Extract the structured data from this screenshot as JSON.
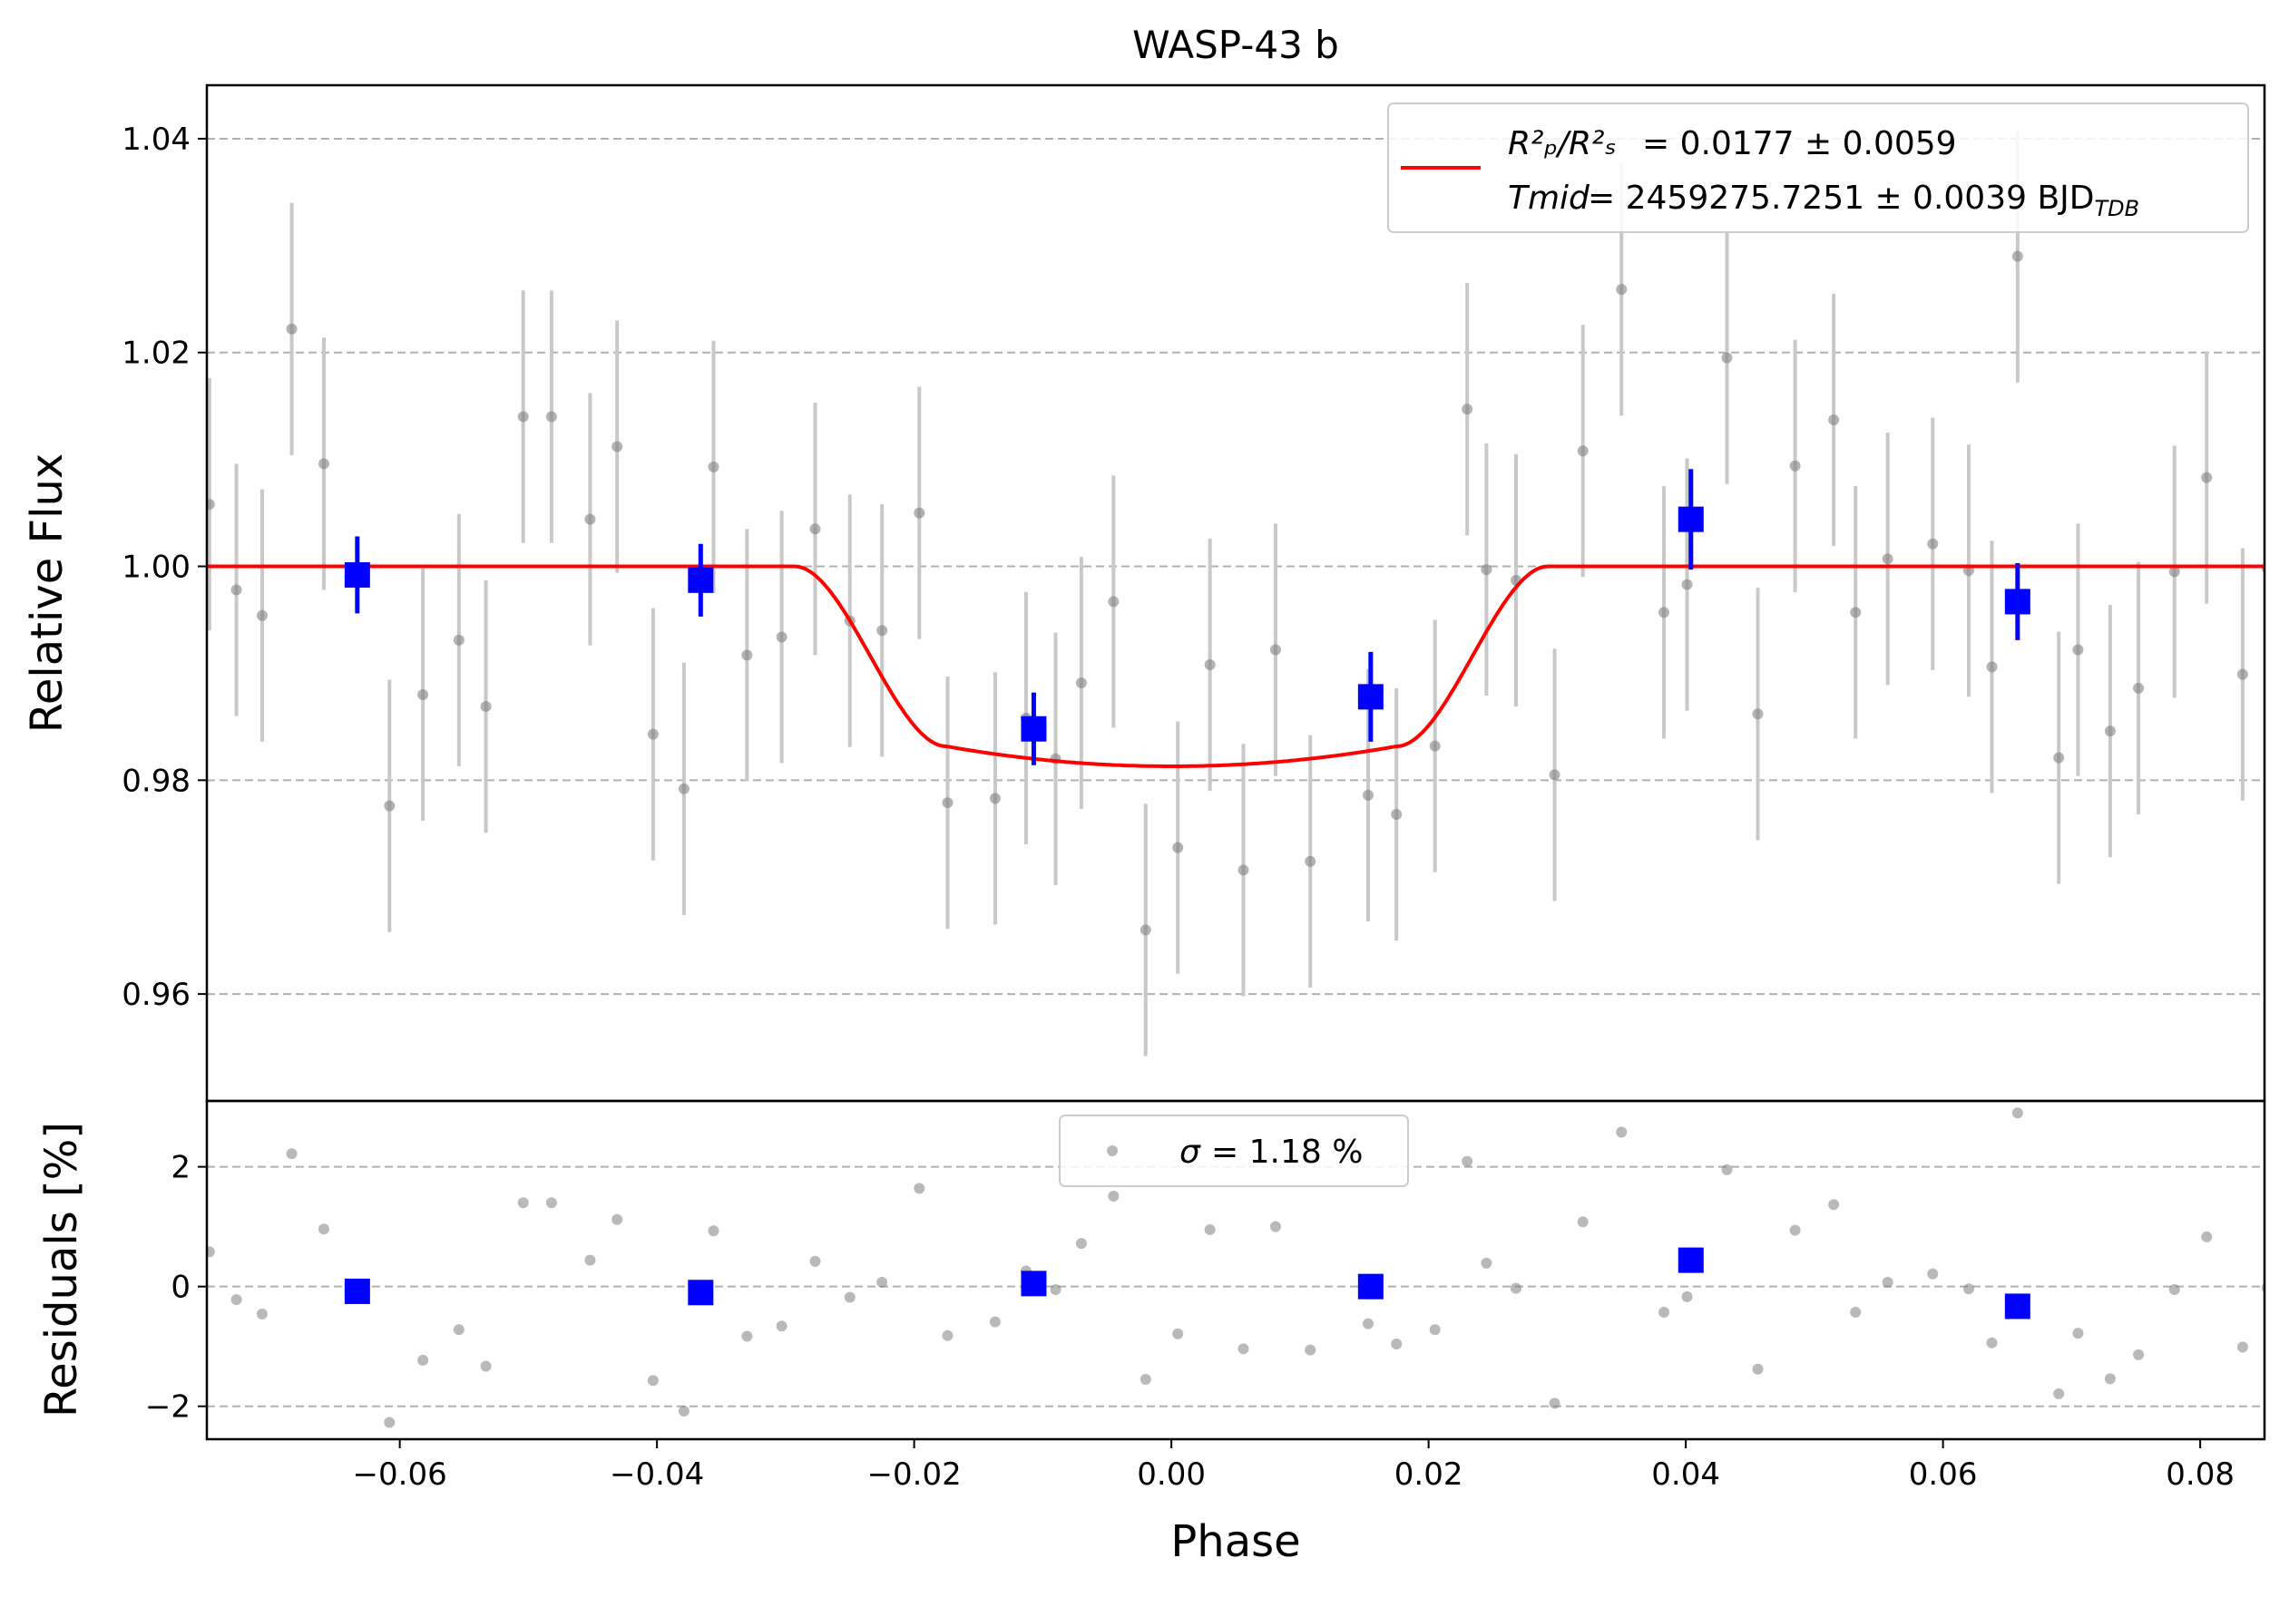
{
  "chart_data": [
    {
      "type": "scatter",
      "title": "WASP-43 b",
      "ylabel": "Relative Flux",
      "xlim": [
        -0.075,
        0.085
      ],
      "ylim": [
        0.95,
        1.045
      ],
      "yticks": [
        "0.96",
        "0.98",
        "1.00",
        "1.02",
        "1.04"
      ],
      "grid": "horizontal dashed",
      "legend_position": "top-right",
      "legend": {
        "line1_lhs": "R²ₚ/R²ₛ",
        "line1_rhs": "= 0.0177 ± 0.0059",
        "line2_lhs": "Tmid",
        "line2_rhs": "= 2459275.7251 ± 0.0039 BJD",
        "line2_sub": "TDB"
      },
      "colors": {
        "data": "#808080",
        "errorbar": "#c8c8c8",
        "binned": "#0000ff",
        "model": "#ff0000"
      },
      "series": [
        {
          "kind": "data",
          "x": [
            -0.0748,
            -0.0727,
            -0.0707,
            -0.0684,
            -0.0659,
            -0.0608,
            -0.0582,
            -0.0554,
            -0.0533,
            -0.0504,
            -0.0482,
            -0.0452,
            -0.0431,
            -0.0403,
            -0.0379,
            -0.0356,
            -0.033,
            -0.0303,
            -0.0277,
            -0.025,
            -0.0225,
            -0.0196,
            -0.0174,
            -0.0137,
            -0.0113,
            -0.009,
            -0.007,
            -0.0045,
            -0.002,
            0.0005,
            0.003,
            0.0056,
            0.0081,
            0.0108,
            0.0153,
            0.0175,
            0.0205,
            0.023,
            0.0245,
            0.0268,
            0.0298,
            0.032,
            0.035,
            0.0383,
            0.0401,
            0.0432,
            0.0456,
            0.0485,
            0.0515,
            0.0532,
            0.0557,
            0.0592,
            0.062,
            0.0638,
            0.0658,
            0.069,
            0.0705,
            0.073,
            0.0752,
            0.078,
            0.0805,
            0.0833,
            0.0852
          ],
          "y": [
            1.0058,
            0.9978,
            0.9954,
            1.0222,
            1.0096,
            0.9776,
            0.988,
            0.9931,
            0.9869,
            1.014,
            1.014,
            1.0044,
            1.0112,
            0.9843,
            0.9792,
            1.0093,
            0.9917,
            0.9934,
            1.0035,
            0.9949,
            0.994,
            1.005,
            0.9779,
            0.9783,
            0.9858,
            0.982,
            0.9891,
            0.9967,
            0.966,
            0.9737,
            0.9908,
            0.9716,
            0.9922,
            0.9724,
            0.9786,
            0.9768,
            0.9832,
            1.0147,
            0.9997,
            0.9987,
            0.9805,
            1.0108,
            1.0259,
            0.9957,
            0.9983,
            1.0195,
            0.9862,
            1.0094,
            1.0137,
            0.9957,
            1.0007,
            1.0021,
            0.9996,
            0.9906,
            1.029,
            0.9821,
            0.9922,
            0.9846,
            0.9886,
            0.9995,
            1.0083,
            0.9899,
            0.9998
          ],
          "yerr": 0.0118
        },
        {
          "kind": "binned",
          "x": [
            -0.0633,
            -0.0366,
            -0.0107,
            0.0155,
            0.0404,
            0.0658
          ],
          "y": [
            0.9992,
            0.9987,
            0.9848,
            0.9878,
            1.0044,
            0.9967
          ],
          "yerr": [
            0.0036,
            0.0034,
            0.0034,
            0.0042,
            0.0047,
            0.0036
          ]
        },
        {
          "kind": "model",
          "t0": 0.0,
          "half_duration": 0.0293,
          "ingress": 0.0118,
          "depth": 0.0187
        }
      ]
    },
    {
      "type": "scatter",
      "xlabel": "Phase",
      "ylabel": "Residuals [%]",
      "xlim": [
        -0.075,
        0.085
      ],
      "ylim": [
        -2.55,
        3.1
      ],
      "xticks": [
        "−0.06",
        "−0.04",
        "−0.02",
        "0.00",
        "0.02",
        "0.04",
        "0.06",
        "0.08"
      ],
      "yticks": [
        "−2",
        "0",
        "2"
      ],
      "grid": "horizontal dashed",
      "legend_position": "top-center",
      "legend": {
        "sigma_symbol": "σ",
        "sigma_value": "= 1.18 %"
      },
      "series": [
        {
          "kind": "residuals",
          "x": [
            -0.0748,
            -0.0727,
            -0.0707,
            -0.0684,
            -0.0659,
            -0.0608,
            -0.0582,
            -0.0554,
            -0.0533,
            -0.0504,
            -0.0482,
            -0.0452,
            -0.0431,
            -0.0403,
            -0.0379,
            -0.0356,
            -0.033,
            -0.0303,
            -0.0277,
            -0.025,
            -0.0225,
            -0.0196,
            -0.0174,
            -0.0137,
            -0.0113,
            -0.009,
            -0.007,
            -0.0045,
            -0.002,
            0.0005,
            0.003,
            0.0056,
            0.0081,
            0.0108,
            0.0153,
            0.0175,
            0.0205,
            0.023,
            0.0245,
            0.0268,
            0.0298,
            0.032,
            0.035,
            0.0383,
            0.0401,
            0.0432,
            0.0456,
            0.0485,
            0.0515,
            0.0532,
            0.0557,
            0.0592,
            0.062,
            0.0638,
            0.0658,
            0.069,
            0.0705,
            0.073,
            0.0752,
            0.078,
            0.0805,
            0.0833,
            0.0852
          ],
          "y": [
            0.58,
            -0.22,
            -0.46,
            2.22,
            0.96,
            -2.27,
            -1.23,
            -0.72,
            -1.33,
            1.4,
            1.4,
            0.44,
            1.12,
            -1.57,
            -2.08,
            0.93,
            -0.83,
            -0.66,
            0.42,
            -0.18,
            0.07,
            1.64,
            -0.82,
            -0.59,
            0.26,
            -0.05,
            0.72,
            1.51,
            -1.55,
            -0.79,
            0.95,
            -1.04,
            1.0,
            -1.06,
            -0.62,
            -0.96,
            -0.72,
            2.09,
            0.39,
            -0.03,
            -1.95,
            1.08,
            2.58,
            -0.43,
            -0.17,
            1.95,
            -1.38,
            0.94,
            1.37,
            -0.43,
            0.07,
            0.21,
            -0.04,
            -0.94,
            2.9,
            -1.79,
            -0.78,
            -1.54,
            -1.14,
            -0.05,
            0.83,
            -1.01,
            -0.02
          ]
        },
        {
          "kind": "binned",
          "x": [
            -0.0633,
            -0.0366,
            -0.0107,
            0.0155,
            0.0404,
            0.0658
          ],
          "y": [
            -0.08,
            -0.1,
            0.05,
            0.0,
            0.44,
            -0.33
          ]
        }
      ]
    }
  ]
}
